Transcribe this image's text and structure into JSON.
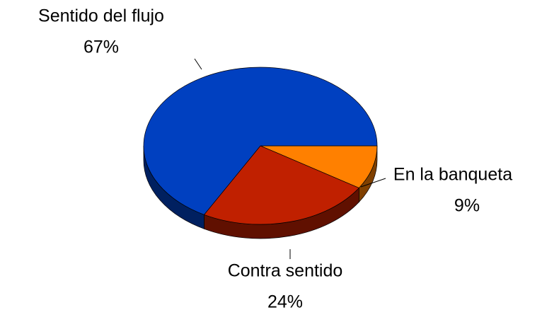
{
  "chart_data": {
    "type": "pie",
    "categories": [
      "En la banqueta",
      "Contra sentido",
      "Sentido del flujo"
    ],
    "values": [
      9,
      24,
      67
    ],
    "value_labels": [
      "9%",
      "24%",
      "67%"
    ],
    "colors": [
      "#ff8000",
      "#c02000",
      "#0040c0"
    ]
  }
}
